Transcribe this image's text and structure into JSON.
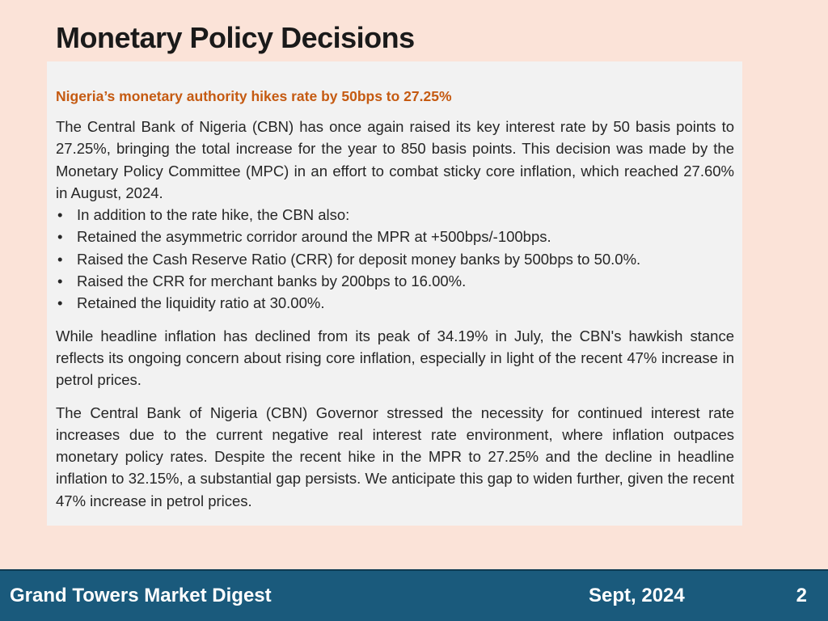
{
  "slide": {
    "title": "Monetary Policy Decisions"
  },
  "content": {
    "subtitle": "Nigeria’s monetary authority hikes rate by 50bps to 27.25%",
    "paragraph1": "The Central Bank of Nigeria (CBN) has once again raised its key interest rate by 50 basis points to 27.25%, bringing the total increase for the year to 850 basis points. This decision was made by the Monetary Policy Committee (MPC) in an effort to combat sticky core inflation, which reached 27.60% in August, 2024.",
    "bullets": [
      "In addition to the rate hike, the CBN also:",
      "Retained the asymmetric corridor around the MPR at +500bps/-100bps.",
      "Raised the Cash Reserve Ratio (CRR) for deposit money banks by 500bps to 50.0%.",
      "Raised the CRR for merchant banks by 200bps to 16.00%.",
      "Retained the liquidity ratio at 30.00%."
    ],
    "paragraph2": "While headline inflation has declined from its peak of 34.19% in July, the CBN's hawkish stance reflects its ongoing concern about rising core inflation, especially in light of the recent 47% increase in petrol prices.",
    "paragraph3": "The Central Bank of Nigeria (CBN) Governor stressed the necessity for continued interest rate increases due to the current negative real interest rate environment, where inflation outpaces monetary policy rates. Despite the recent hike in the MPR to 27.25% and the decline in headline inflation to 32.15%, a substantial gap persists. We anticipate this gap to widen further, given the recent 47% increase in petrol prices."
  },
  "footer": {
    "publication": "Grand Towers Market Digest",
    "date": "Sept, 2024",
    "page_number": "2"
  },
  "colors": {
    "background": "#fbe3d8",
    "content_box": "#f2f2f2",
    "accent_subtitle": "#c55a11",
    "footer_bar": "#1a5a7c"
  }
}
